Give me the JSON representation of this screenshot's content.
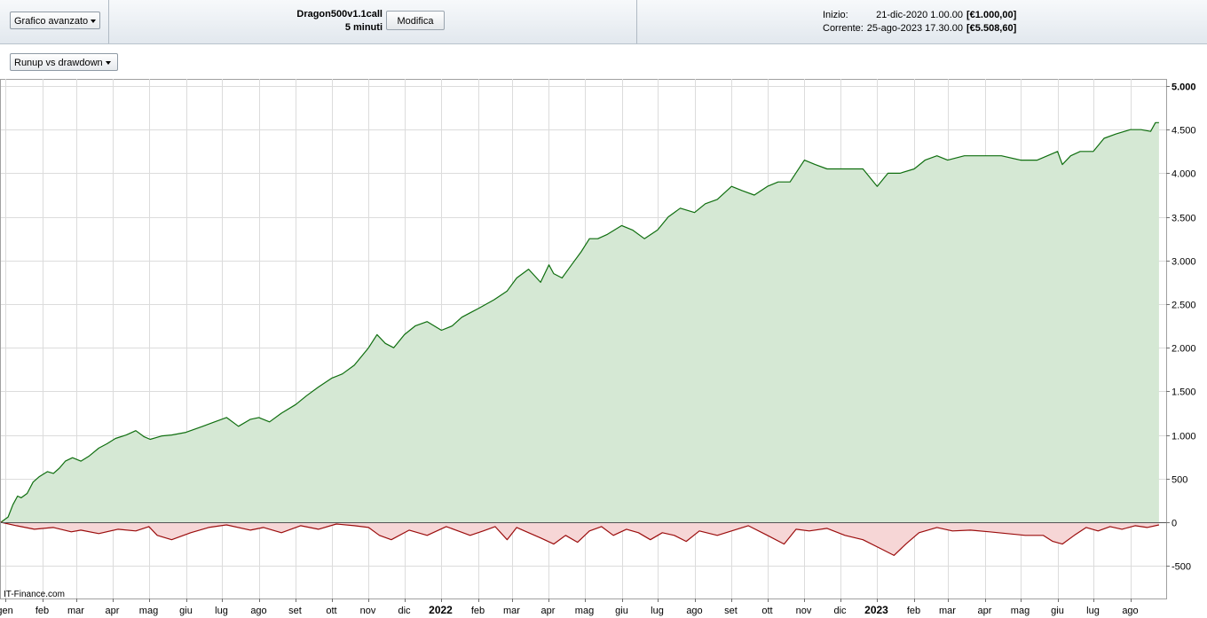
{
  "toolbar": {
    "chart_mode_label": "Grafico avanzato",
    "strategy_name": "Dragon500v1.1call",
    "timeframe": "5 minuti",
    "edit_button_label": "Modifica",
    "start_label": "Inizio:",
    "start_datetime": "21-dic-2020 1.00.00",
    "start_value": "[€1.000,00]",
    "current_label": "Corrente:",
    "current_datetime": "25-ago-2023 17.30.00",
    "current_value": "[€5.508,60]"
  },
  "chart_selector_label": "Runup vs drawdown",
  "watermark": "IT-Finance.com",
  "colors": {
    "runup_line": "#0f6e0f",
    "runup_fill": "#d5e8d4",
    "drawdown_line": "#9b0d0d",
    "drawdown_fill": "#f6d6d6",
    "grid": "#dcdcdc"
  },
  "chart_data": {
    "type": "area",
    "title": "",
    "xlabel": "",
    "ylabel": "",
    "ylim": [
      -800,
      5000
    ],
    "y_ticks": [
      5000,
      4500,
      4000,
      3500,
      3000,
      2500,
      2000,
      1500,
      1000,
      500,
      0,
      -500
    ],
    "y_tick_labels": [
      "5.000",
      "4.500",
      "4.000",
      "3.500",
      "3.000",
      "2.500",
      "2.000",
      "1.500",
      "1.000",
      "500",
      "0",
      "-500"
    ],
    "x_range": [
      "2020-12-28",
      "2023-08-31"
    ],
    "x_ticks": [
      {
        "date": "2021-01-01",
        "label": "gen",
        "bold": false
      },
      {
        "date": "2021-02-01",
        "label": "feb",
        "bold": false
      },
      {
        "date": "2021-03-01",
        "label": "mar",
        "bold": false
      },
      {
        "date": "2021-04-01",
        "label": "apr",
        "bold": false
      },
      {
        "date": "2021-05-01",
        "label": "mag",
        "bold": false
      },
      {
        "date": "2021-06-01",
        "label": "giu",
        "bold": false
      },
      {
        "date": "2021-07-01",
        "label": "lug",
        "bold": false
      },
      {
        "date": "2021-08-01",
        "label": "ago",
        "bold": false
      },
      {
        "date": "2021-09-01",
        "label": "set",
        "bold": false
      },
      {
        "date": "2021-10-01",
        "label": "ott",
        "bold": false
      },
      {
        "date": "2021-11-01",
        "label": "nov",
        "bold": false
      },
      {
        "date": "2021-12-01",
        "label": "dic",
        "bold": false
      },
      {
        "date": "2022-01-01",
        "label": "2022",
        "bold": true
      },
      {
        "date": "2022-02-01",
        "label": "feb",
        "bold": false
      },
      {
        "date": "2022-03-01",
        "label": "mar",
        "bold": false
      },
      {
        "date": "2022-04-01",
        "label": "apr",
        "bold": false
      },
      {
        "date": "2022-05-01",
        "label": "mag",
        "bold": false
      },
      {
        "date": "2022-06-01",
        "label": "giu",
        "bold": false
      },
      {
        "date": "2022-07-01",
        "label": "lug",
        "bold": false
      },
      {
        "date": "2022-08-01",
        "label": "ago",
        "bold": false
      },
      {
        "date": "2022-09-01",
        "label": "set",
        "bold": false
      },
      {
        "date": "2022-10-01",
        "label": "ott",
        "bold": false
      },
      {
        "date": "2022-11-01",
        "label": "nov",
        "bold": false
      },
      {
        "date": "2022-12-01",
        "label": "dic",
        "bold": false
      },
      {
        "date": "2023-01-01",
        "label": "2023",
        "bold": true
      },
      {
        "date": "2023-02-01",
        "label": "feb",
        "bold": false
      },
      {
        "date": "2023-03-01",
        "label": "mar",
        "bold": false
      },
      {
        "date": "2023-04-01",
        "label": "apr",
        "bold": false
      },
      {
        "date": "2023-05-01",
        "label": "mag",
        "bold": false
      },
      {
        "date": "2023-06-01",
        "label": "giu",
        "bold": false
      },
      {
        "date": "2023-07-01",
        "label": "lug",
        "bold": false
      },
      {
        "date": "2023-08-01",
        "label": "ago",
        "bold": false
      }
    ],
    "grid": true,
    "series": [
      {
        "kind": "runup",
        "x": [
          "2020-12-28",
          "2021-01-03",
          "2021-01-07",
          "2021-01-11",
          "2021-01-14",
          "2021-01-19",
          "2021-01-24",
          "2021-01-29",
          "2021-02-05",
          "2021-02-10",
          "2021-02-15",
          "2021-02-20",
          "2021-02-26",
          "2021-03-05",
          "2021-03-12",
          "2021-03-20",
          "2021-03-27",
          "2021-04-03",
          "2021-04-12",
          "2021-04-20",
          "2021-04-27",
          "2021-05-02",
          "2021-05-07",
          "2021-05-12",
          "2021-05-20",
          "2021-06-01",
          "2021-06-15",
          "2021-06-25",
          "2021-07-05",
          "2021-07-15",
          "2021-07-25",
          "2021-08-01",
          "2021-08-10",
          "2021-08-20",
          "2021-09-01",
          "2021-09-10",
          "2021-09-20",
          "2021-10-01",
          "2021-10-10",
          "2021-10-20",
          "2021-11-01",
          "2021-11-08",
          "2021-11-15",
          "2021-11-22",
          "2021-12-01",
          "2021-12-10",
          "2021-12-20",
          "2022-01-01",
          "2022-01-10",
          "2022-01-18",
          "2022-01-25",
          "2022-02-01",
          "2022-02-14",
          "2022-02-25",
          "2022-03-05",
          "2022-03-15",
          "2022-03-25",
          "2022-04-01",
          "2022-04-05",
          "2022-04-12",
          "2022-04-20",
          "2022-04-28",
          "2022-05-05",
          "2022-05-12",
          "2022-05-20",
          "2022-06-01",
          "2022-06-10",
          "2022-06-20",
          "2022-07-01",
          "2022-07-10",
          "2022-07-20",
          "2022-08-01",
          "2022-08-10",
          "2022-08-20",
          "2022-09-01",
          "2022-09-10",
          "2022-09-20",
          "2022-10-01",
          "2022-10-10",
          "2022-10-20",
          "2022-11-01",
          "2022-11-10",
          "2022-11-20",
          "2022-12-01",
          "2022-12-10",
          "2022-12-20",
          "2023-01-01",
          "2023-01-10",
          "2023-01-20",
          "2023-02-01",
          "2023-02-10",
          "2023-02-20",
          "2023-03-01",
          "2023-03-15",
          "2023-04-01",
          "2023-04-15",
          "2023-05-01",
          "2023-05-15",
          "2023-06-01",
          "2023-06-05",
          "2023-06-12",
          "2023-06-20",
          "2023-07-01",
          "2023-07-10",
          "2023-07-20",
          "2023-08-01",
          "2023-08-10",
          "2023-08-18",
          "2023-08-22",
          "2023-08-25"
        ],
        "y": [
          0,
          60,
          200,
          300,
          280,
          330,
          460,
          520,
          580,
          560,
          620,
          700,
          740,
          700,
          760,
          850,
          900,
          960,
          1000,
          1050,
          980,
          950,
          970,
          990,
          1000,
          1030,
          1100,
          1150,
          1200,
          1100,
          1180,
          1200,
          1150,
          1250,
          1350,
          1450,
          1550,
          1650,
          1700,
          1800,
          2000,
          2150,
          2050,
          2000,
          2150,
          2250,
          2300,
          2200,
          2250,
          2350,
          2400,
          2450,
          2550,
          2650,
          2800,
          2900,
          2750,
          2950,
          2850,
          2800,
          2950,
          3100,
          3250,
          3250,
          3300,
          3400,
          3350,
          3250,
          3350,
          3500,
          3600,
          3550,
          3650,
          3700,
          3850,
          3800,
          3750,
          3850,
          3900,
          3900,
          4150,
          4100,
          4050,
          4050,
          4050,
          4050,
          3850,
          4000,
          4000,
          4050,
          4150,
          4200,
          4150,
          4200,
          4200,
          4200,
          4150,
          4150,
          4250,
          4100,
          4200,
          4250,
          4250,
          4400,
          4450,
          4500,
          4500,
          4480,
          4580,
          4580
        ]
      },
      {
        "kind": "drawdown",
        "x": [
          "2020-12-28",
          "2021-01-10",
          "2021-01-25",
          "2021-02-10",
          "2021-02-25",
          "2021-03-05",
          "2021-03-20",
          "2021-04-05",
          "2021-04-20",
          "2021-05-01",
          "2021-05-08",
          "2021-05-20",
          "2021-06-05",
          "2021-06-20",
          "2021-07-05",
          "2021-07-25",
          "2021-08-05",
          "2021-08-20",
          "2021-09-05",
          "2021-09-20",
          "2021-10-05",
          "2021-10-20",
          "2021-11-01",
          "2021-11-10",
          "2021-11-20",
          "2021-12-05",
          "2021-12-20",
          "2022-01-05",
          "2022-01-15",
          "2022-01-25",
          "2022-02-05",
          "2022-02-15",
          "2022-02-25",
          "2022-03-05",
          "2022-03-15",
          "2022-03-25",
          "2022-04-05",
          "2022-04-15",
          "2022-04-25",
          "2022-05-05",
          "2022-05-15",
          "2022-05-25",
          "2022-06-05",
          "2022-06-15",
          "2022-06-25",
          "2022-07-05",
          "2022-07-15",
          "2022-07-25",
          "2022-08-05",
          "2022-08-20",
          "2022-09-01",
          "2022-09-15",
          "2022-10-01",
          "2022-10-15",
          "2022-10-25",
          "2022-11-05",
          "2022-11-20",
          "2022-12-05",
          "2022-12-20",
          "2023-01-05",
          "2023-01-15",
          "2023-01-25",
          "2023-02-05",
          "2023-02-20",
          "2023-03-05",
          "2023-03-20",
          "2023-04-05",
          "2023-04-20",
          "2023-05-05",
          "2023-05-20",
          "2023-05-28",
          "2023-06-05",
          "2023-06-15",
          "2023-06-25",
          "2023-07-05",
          "2023-07-15",
          "2023-07-25",
          "2023-08-05",
          "2023-08-15",
          "2023-08-25"
        ],
        "y": [
          0,
          -40,
          -80,
          -60,
          -110,
          -90,
          -130,
          -80,
          -100,
          -50,
          -150,
          -200,
          -120,
          -60,
          -30,
          -90,
          -60,
          -120,
          -40,
          -80,
          -20,
          -40,
          -60,
          -150,
          -200,
          -90,
          -150,
          -50,
          -100,
          -150,
          -100,
          -50,
          -200,
          -60,
          -120,
          -180,
          -250,
          -150,
          -230,
          -100,
          -50,
          -150,
          -80,
          -120,
          -200,
          -120,
          -150,
          -220,
          -100,
          -150,
          -100,
          -40,
          -150,
          -250,
          -80,
          -100,
          -70,
          -150,
          -200,
          -310,
          -380,
          -250,
          -120,
          -60,
          -100,
          -90,
          -110,
          -130,
          -150,
          -150,
          -220,
          -250,
          -150,
          -60,
          -100,
          -50,
          -80,
          -40,
          -60,
          -30
        ]
      }
    ]
  }
}
